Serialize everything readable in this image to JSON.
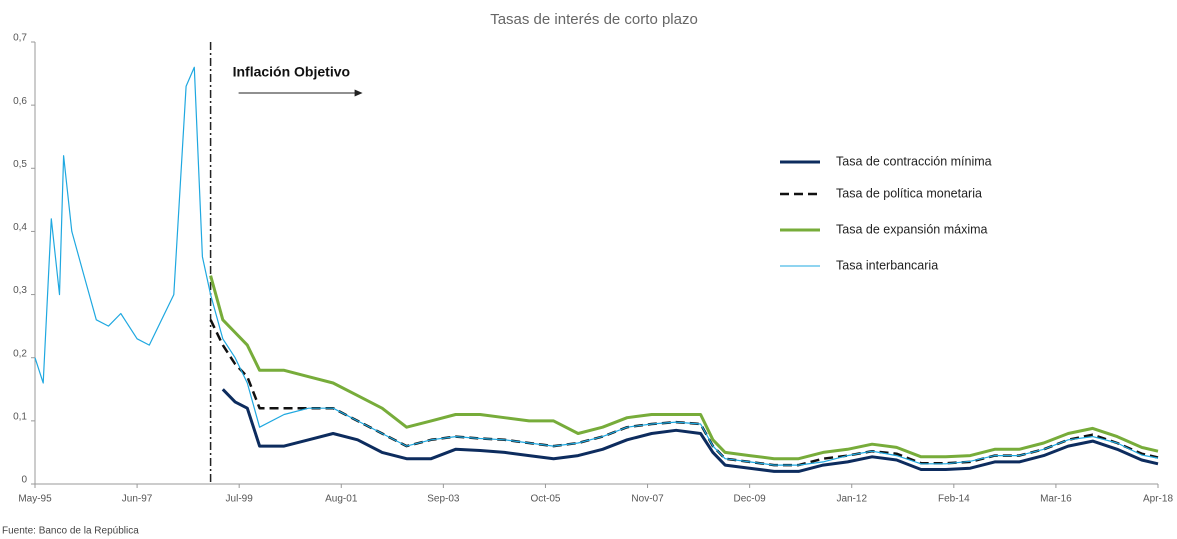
{
  "chart_data": {
    "type": "line",
    "title": "Tasas de interés de corto plazo",
    "source": "Fuente: Banco de la República",
    "annotation": {
      "text": "Inflación Objetivo",
      "x": "1998-12"
    },
    "x": [
      "1995-05",
      "1995-07",
      "1995-09",
      "1995-11",
      "1995-12",
      "1996-02",
      "1996-05",
      "1996-08",
      "1996-11",
      "1997-02",
      "1997-06",
      "1997-09",
      "1997-12",
      "1998-03",
      "1998-06",
      "1998-08",
      "1998-10",
      "1998-12",
      "1999-03",
      "1999-06",
      "1999-09",
      "1999-12",
      "2000-06",
      "2000-12",
      "2001-06",
      "2001-12",
      "2002-06",
      "2002-12",
      "2003-06",
      "2003-12",
      "2004-06",
      "2004-12",
      "2005-06",
      "2005-12",
      "2006-06",
      "2006-12",
      "2007-06",
      "2007-12",
      "2008-06",
      "2008-12",
      "2009-03",
      "2009-06",
      "2009-12",
      "2010-06",
      "2010-12",
      "2011-06",
      "2011-12",
      "2012-06",
      "2012-12",
      "2013-06",
      "2013-12",
      "2014-06",
      "2014-12",
      "2015-06",
      "2015-12",
      "2016-06",
      "2016-12",
      "2017-06",
      "2017-12",
      "2018-04"
    ],
    "series": [
      {
        "name": "Tasa de contracción mínima",
        "color": "#0d2c5e",
        "values": [
          null,
          null,
          null,
          null,
          null,
          null,
          null,
          null,
          null,
          null,
          null,
          null,
          null,
          null,
          null,
          null,
          null,
          null,
          0.15,
          0.13,
          0.12,
          0.06,
          0.06,
          0.07,
          0.08,
          0.07,
          0.05,
          0.04,
          0.04,
          0.055,
          0.053,
          0.05,
          0.045,
          0.04,
          0.045,
          0.055,
          0.07,
          0.08,
          0.085,
          0.08,
          0.05,
          0.03,
          0.025,
          0.02,
          0.02,
          0.03,
          0.035,
          0.043,
          0.038,
          0.023,
          0.023,
          0.025,
          0.035,
          0.035,
          0.045,
          0.06,
          0.068,
          0.055,
          0.038,
          0.032
        ]
      },
      {
        "name": "Tasa de política monetaria",
        "color": "#111111",
        "dashed": true,
        "values": [
          null,
          null,
          null,
          null,
          null,
          null,
          null,
          null,
          null,
          null,
          null,
          null,
          null,
          null,
          null,
          null,
          null,
          0.26,
          0.22,
          0.19,
          0.17,
          0.12,
          0.12,
          0.12,
          0.12,
          0.1,
          0.08,
          0.06,
          0.07,
          0.075,
          0.072,
          0.07,
          0.065,
          0.06,
          0.065,
          0.075,
          0.09,
          0.095,
          0.098,
          0.095,
          0.06,
          0.04,
          0.035,
          0.03,
          0.03,
          0.04,
          0.045,
          0.052,
          0.048,
          0.033,
          0.033,
          0.035,
          0.045,
          0.045,
          0.055,
          0.07,
          0.078,
          0.065,
          0.048,
          0.042
        ]
      },
      {
        "name": "Tasa de expansión máxima",
        "color": "#77ac3a",
        "values": [
          null,
          null,
          null,
          null,
          null,
          null,
          null,
          null,
          null,
          null,
          null,
          null,
          null,
          null,
          null,
          null,
          null,
          0.33,
          0.26,
          0.24,
          0.22,
          0.18,
          0.18,
          0.17,
          0.16,
          0.14,
          0.12,
          0.09,
          0.1,
          0.11,
          0.11,
          0.105,
          0.1,
          0.1,
          0.08,
          0.09,
          0.105,
          0.11,
          0.11,
          0.11,
          0.07,
          0.05,
          0.045,
          0.04,
          0.04,
          0.05,
          0.055,
          0.063,
          0.058,
          0.043,
          0.043,
          0.045,
          0.055,
          0.055,
          0.065,
          0.08,
          0.088,
          0.075,
          0.058,
          0.052
        ]
      },
      {
        "name": "Tasa interbancaria",
        "color": "#1fa8e0",
        "values": [
          0.2,
          0.16,
          0.42,
          0.3,
          0.52,
          0.4,
          0.33,
          0.26,
          0.25,
          0.27,
          0.23,
          0.22,
          0.26,
          0.3,
          0.63,
          0.66,
          0.36,
          0.3,
          0.23,
          0.2,
          0.16,
          0.09,
          0.11,
          0.12,
          0.12,
          0.1,
          0.08,
          0.06,
          0.07,
          0.075,
          0.072,
          0.07,
          0.065,
          0.06,
          0.065,
          0.075,
          0.09,
          0.095,
          0.098,
          0.095,
          0.06,
          0.04,
          0.035,
          0.03,
          0.03,
          0.035,
          0.045,
          0.052,
          0.045,
          0.032,
          0.032,
          0.036,
          0.045,
          0.045,
          0.055,
          0.07,
          0.075,
          0.065,
          0.046,
          0.041
        ]
      }
    ],
    "xlim": [
      "1995-05",
      "2018-04"
    ],
    "xticks": [
      {
        "value": "1995-05",
        "label": "May-95"
      },
      {
        "value": "1997-06",
        "label": "Jun-97"
      },
      {
        "value": "1999-07",
        "label": "Jul-99"
      },
      {
        "value": "2001-08",
        "label": "Aug-01"
      },
      {
        "value": "2003-09",
        "label": "Sep-03"
      },
      {
        "value": "2005-10",
        "label": "Oct-05"
      },
      {
        "value": "2007-11",
        "label": "Nov-07"
      },
      {
        "value": "2009-12",
        "label": "Dec-09"
      },
      {
        "value": "2012-01",
        "label": "Jan-12"
      },
      {
        "value": "2014-02",
        "label": "Feb-14"
      },
      {
        "value": "2016-03",
        "label": "Mar-16"
      },
      {
        "value": "2018-04",
        "label": "Apr-18"
      }
    ],
    "ylim": [
      0,
      0.7
    ],
    "yticks": [
      0,
      {
        "value": 0.1,
        "label": "0,1"
      },
      {
        "value": 0.2,
        "label": "0,2"
      },
      {
        "value": 0.3,
        "label": "0,3"
      },
      {
        "value": 0.4,
        "label": "0,4"
      },
      {
        "value": 0.5,
        "label": "0,5"
      },
      {
        "value": 0.6,
        "label": "0,6"
      },
      {
        "value": 0.7,
        "label": "0,7"
      }
    ],
    "grid": false
  }
}
